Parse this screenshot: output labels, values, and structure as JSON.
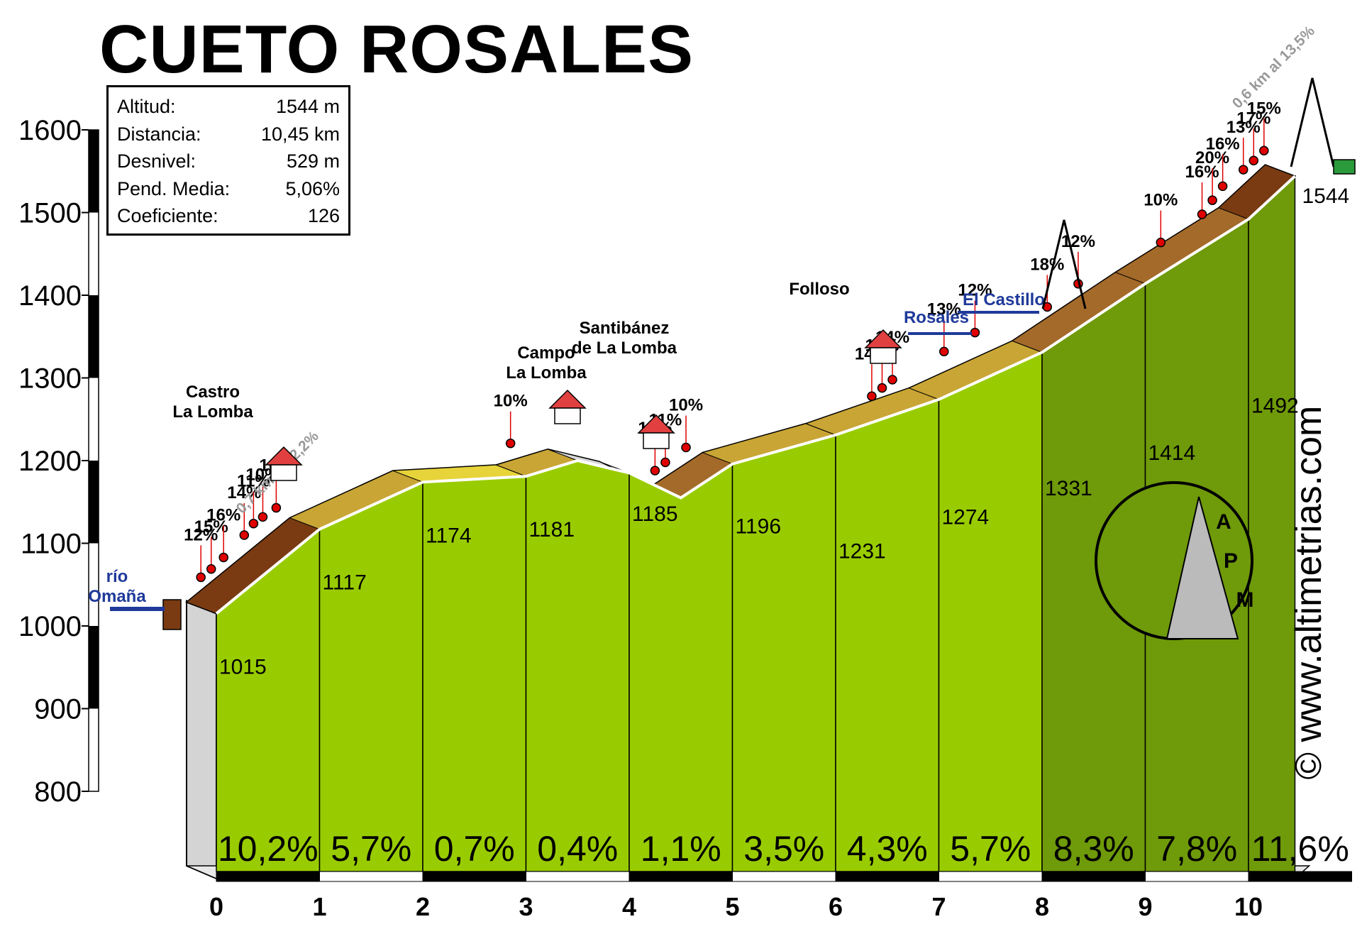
{
  "title": "CUETO ROSALES",
  "info": [
    {
      "label": "Altitud:",
      "value": "1544 m"
    },
    {
      "label": "Distancia:",
      "value": "10,45 km"
    },
    {
      "label": "Desnivel:",
      "value": "529 m"
    },
    {
      "label": "Pend. Media:",
      "value": "5,06%"
    },
    {
      "label": "Coeficiente:",
      "value": "126"
    }
  ],
  "watermark": "© www.altimetrias.com",
  "logo_text": "APM",
  "colors": {
    "profile_green": "#99cc00",
    "profile_dark_green": "#6f9a0a",
    "slope_yellow": "#e7d33a",
    "slope_brown": "#7a3b12",
    "marker_red": "#e00000",
    "route_blue": "#1f3a9a"
  },
  "chart_data": {
    "type": "area",
    "title": "CUETO ROSALES",
    "xlabel": "",
    "ylabel": "",
    "xlim": [
      0,
      10.45
    ],
    "ylim": [
      800,
      1600
    ],
    "x_ticks": [
      "0",
      "1",
      "2",
      "3",
      "4",
      "5",
      "6",
      "7",
      "8",
      "9",
      "10"
    ],
    "y_ticks": [
      "800",
      "900",
      "1000",
      "1100",
      "1200",
      "1300",
      "1400",
      "1500",
      "1600"
    ],
    "profile_x": [
      0,
      1,
      2,
      3,
      3.5,
      4,
      4.5,
      5,
      6,
      7,
      8,
      9,
      10,
      10.45
    ],
    "profile_y": [
      1015,
      1117,
      1174,
      1181,
      1200,
      1185,
      1155,
      1196,
      1231,
      1274,
      1331,
      1414,
      1492,
      1544
    ],
    "km_labels": [
      "1015",
      "1117",
      "1174",
      "1181",
      "1185",
      "1196",
      "1231",
      "1274",
      "1331",
      "1414",
      "1492"
    ],
    "summit_label": "1544",
    "km_gradients": [
      "10,2%",
      "5,7%",
      "0,7%",
      "0,4%",
      "1,1%",
      "3,5%",
      "4,3%",
      "5,7%",
      "8,3%",
      "7,8%",
      "11,6%"
    ],
    "annotations": [
      {
        "text": "0,7 km al 12,2%",
        "x": 0.25,
        "y": 1135
      },
      {
        "text": "0,6 km al 13,5%",
        "x": 9.9,
        "y": 1625
      }
    ],
    "slope_markers": [
      {
        "text": "12%",
        "x": -0.15,
        "y": 1052
      },
      {
        "text": "15%",
        "x": -0.05,
        "y": 1062
      },
      {
        "text": "16%",
        "x": 0.07,
        "y": 1076
      },
      {
        "text": "14%",
        "x": 0.27,
        "y": 1103
      },
      {
        "text": "11%",
        "x": 0.36,
        "y": 1117
      },
      {
        "text": "10%",
        "x": 0.45,
        "y": 1125
      },
      {
        "text": "10%",
        "x": 0.58,
        "y": 1136
      },
      {
        "text": "10%",
        "x": 2.85,
        "y": 1214
      },
      {
        "text": "10%",
        "x": 4.25,
        "y": 1181
      },
      {
        "text": "11%",
        "x": 4.35,
        "y": 1191
      },
      {
        "text": "10%",
        "x": 4.55,
        "y": 1209
      },
      {
        "text": "14%",
        "x": 6.35,
        "y": 1271
      },
      {
        "text": "10%",
        "x": 6.45,
        "y": 1281
      },
      {
        "text": "14%",
        "x": 6.55,
        "y": 1291
      },
      {
        "text": "13%",
        "x": 7.05,
        "y": 1325
      },
      {
        "text": "12%",
        "x": 7.35,
        "y": 1348
      },
      {
        "text": "18%",
        "x": 8.05,
        "y": 1379
      },
      {
        "text": "12%",
        "x": 8.35,
        "y": 1407
      },
      {
        "text": "10%",
        "x": 9.15,
        "y": 1457
      },
      {
        "text": "16%",
        "x": 9.55,
        "y": 1491
      },
      {
        "text": "20%",
        "x": 9.65,
        "y": 1508
      },
      {
        "text": "16%",
        "x": 9.75,
        "y": 1525
      },
      {
        "text": "13%",
        "x": 9.95,
        "y": 1545
      },
      {
        "text": "17%",
        "x": 10.05,
        "y": 1556
      },
      {
        "text": "15%",
        "x": 10.15,
        "y": 1568
      }
    ],
    "places": [
      {
        "name": "río Omaña",
        "lines": [
          "río",
          "Omaña"
        ]
      },
      {
        "name": "Castro La Lomba",
        "lines": [
          "Castro",
          "La Lomba"
        ]
      },
      {
        "name": "Campo La Lomba",
        "lines": [
          "Campo",
          "La Lomba"
        ]
      },
      {
        "name": "Santibánez de La Lomba",
        "lines": [
          "Santibánez",
          "de La Lomba"
        ]
      },
      {
        "name": "Folloso",
        "lines": [
          "Folloso"
        ]
      },
      {
        "name": "Rosales",
        "lines": [
          "Rosales"
        ]
      },
      {
        "name": "El Castillo",
        "lines": [
          "El Castillo"
        ]
      }
    ]
  }
}
